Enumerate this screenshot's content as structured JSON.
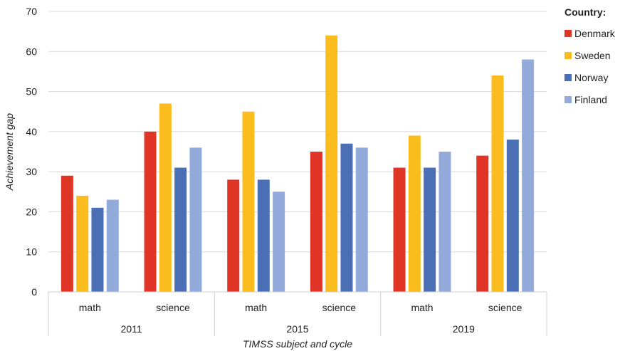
{
  "chart_data": {
    "type": "bar",
    "groups": [
      {
        "year": "2011",
        "subjects": [
          "math",
          "science"
        ]
      },
      {
        "year": "2015",
        "subjects": [
          "math",
          "science"
        ]
      },
      {
        "year": "2019",
        "subjects": [
          "math",
          "science"
        ]
      }
    ],
    "categories": [
      "2011 math",
      "2011 science",
      "2015 math",
      "2015 science",
      "2019 math",
      "2019 science"
    ],
    "series": [
      {
        "name": "Denmark",
        "color": "#e03526",
        "values": [
          29,
          40,
          28,
          35,
          31,
          34
        ]
      },
      {
        "name": "Sweden",
        "color": "#fbbd1e",
        "values": [
          24,
          47,
          45,
          64,
          39,
          54
        ]
      },
      {
        "name": "Norway",
        "color": "#4a6fb5",
        "values": [
          21,
          31,
          28,
          37,
          31,
          38
        ]
      },
      {
        "name": "Finland",
        "color": "#93abdb",
        "values": [
          23,
          36,
          25,
          36,
          35,
          58
        ]
      }
    ],
    "ylim": [
      0,
      70
    ],
    "yticks": [
      0,
      10,
      20,
      30,
      40,
      50,
      60,
      70
    ],
    "xlabel": "TIMSS subject and cycle",
    "ylabel": "Achievement gap",
    "legend_title": "Country:",
    "legend_position": "right",
    "grid": true
  }
}
